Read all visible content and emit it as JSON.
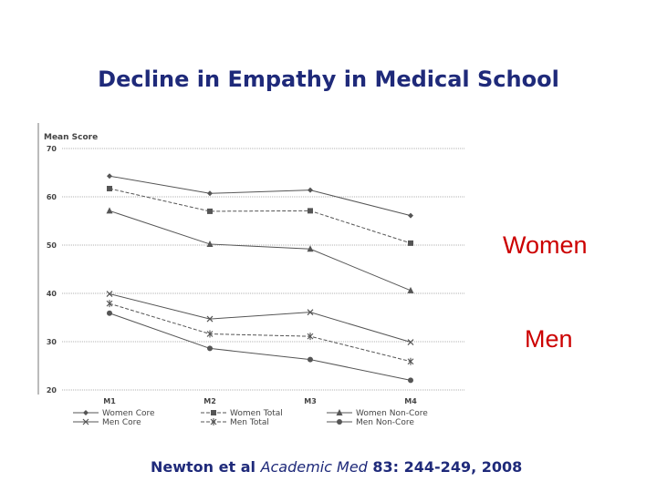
{
  "slide": {
    "title": "Decline in Empathy in Medical School",
    "labels": {
      "women": "Women",
      "men": "Men",
      "color": "#cc0000"
    },
    "citation": {
      "authors": "Newton et al",
      "journal": "Academic Med",
      "reference": "83: 244-249, 2008"
    },
    "colors": {
      "title": "#1f2a7a",
      "lines": "#555555"
    }
  },
  "chart_data": {
    "type": "line",
    "ylabel": "Mean Score",
    "ylim": [
      20,
      70
    ],
    "yticks": [
      20,
      30,
      40,
      50,
      60,
      70
    ],
    "grid": true,
    "legend_position": "bottom",
    "categories": [
      "M1",
      "M2",
      "M3",
      "M4"
    ],
    "series": [
      {
        "name": "Women Core",
        "marker": "diamond",
        "dash": "solid",
        "values": [
          64.3,
          60.7,
          61.4,
          56.1
        ]
      },
      {
        "name": "Women Total",
        "marker": "square",
        "dash": "dashed",
        "values": [
          61.7,
          57,
          57.1,
          50.4
        ]
      },
      {
        "name": "Women Non-Core",
        "marker": "triangle",
        "dash": "solid",
        "values": [
          57.1,
          50.2,
          49.2,
          40.6
        ]
      },
      {
        "name": "Men Core",
        "marker": "x",
        "dash": "solid",
        "values": [
          39.9,
          34.7,
          36.1,
          29.9
        ]
      },
      {
        "name": "Men Total",
        "marker": "star",
        "dash": "dashed",
        "values": [
          37.9,
          31.6,
          31.1,
          25.9
        ]
      },
      {
        "name": "Men Non-Core",
        "marker": "circle",
        "dash": "solid",
        "values": [
          35.9,
          28.6,
          26.3,
          22
        ]
      }
    ]
  }
}
